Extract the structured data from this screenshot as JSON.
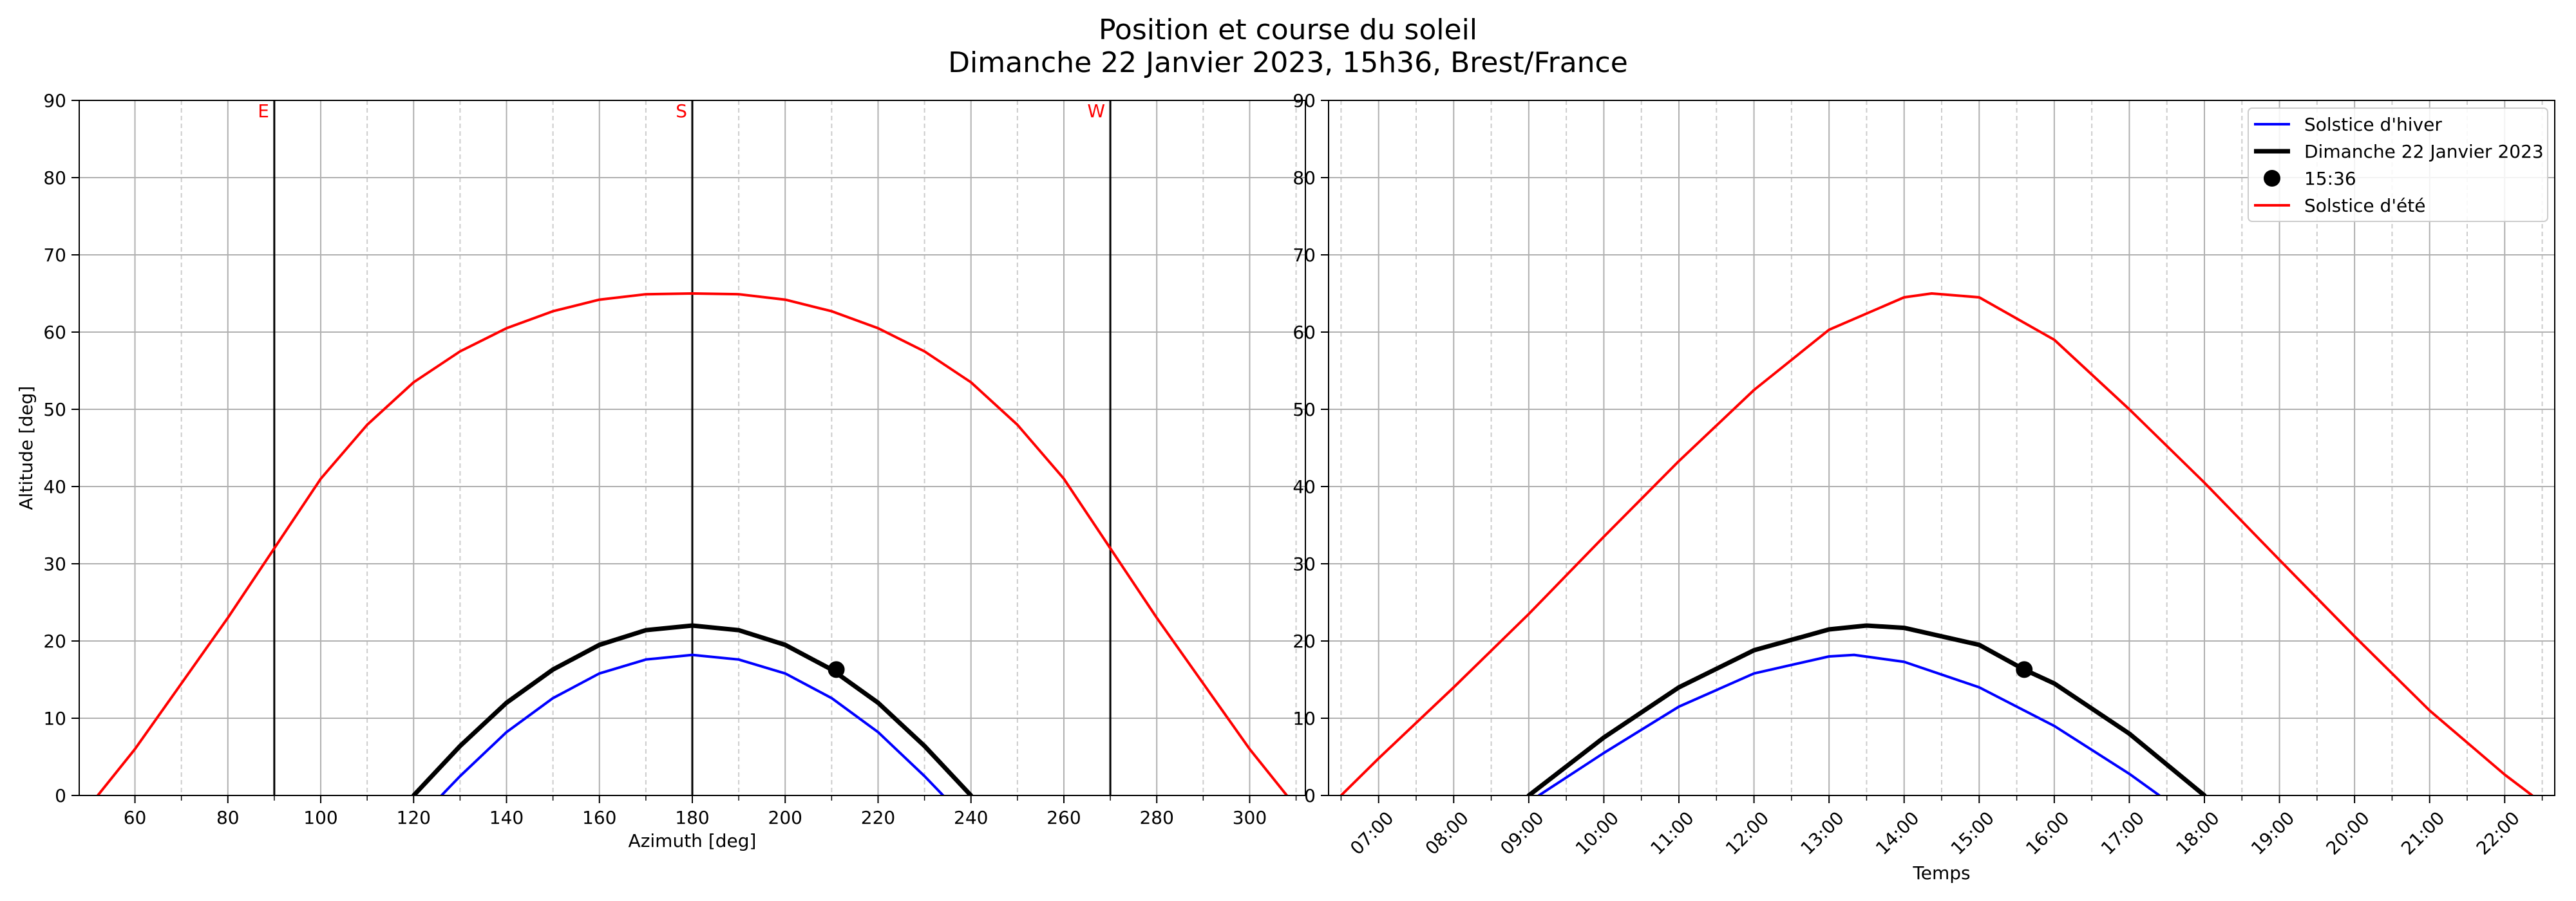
{
  "figure": {
    "title_line1": "Position et course du soleil",
    "title_line2": "Dimanche 22 Janvier 2023, 15h36, Brest/France"
  },
  "colors": {
    "winter": "#0000ff",
    "today": "#000000",
    "summer": "#ff0000",
    "direction_label": "#ff0000",
    "grid_major": "#b0b0b0",
    "grid_minor": "#cccccc"
  },
  "chart_data": [
    {
      "type": "line",
      "xlabel": "Azimuth [deg]",
      "ylabel": "Altitude [deg]",
      "xlim": [
        48,
        312
      ],
      "ylim": [
        0,
        90
      ],
      "x_ticks": [
        60,
        80,
        100,
        120,
        140,
        160,
        180,
        200,
        220,
        240,
        260,
        280,
        300
      ],
      "x_minor_ticks": [
        70,
        90,
        110,
        130,
        150,
        170,
        190,
        210,
        230,
        250,
        270,
        290,
        310
      ],
      "y_ticks": [
        0,
        10,
        20,
        30,
        40,
        50,
        60,
        70,
        80,
        90
      ],
      "grid": true,
      "direction_lines": [
        {
          "label": "E",
          "x": 90
        },
        {
          "label": "S",
          "x": 180
        },
        {
          "label": "W",
          "x": 270
        }
      ],
      "series": [
        {
          "name": "Solstice d'hiver",
          "color": "#0000ff",
          "x": [
            126,
            130,
            140,
            150,
            160,
            170,
            180,
            190,
            200,
            210,
            220,
            230,
            234
          ],
          "y": [
            0,
            2.5,
            8.2,
            12.6,
            15.8,
            17.6,
            18.2,
            17.6,
            15.8,
            12.6,
            8.2,
            2.5,
            0
          ]
        },
        {
          "name": "Dimanche 22 Janvier 2023",
          "color": "#000000",
          "x": [
            120,
            130,
            140,
            150,
            160,
            170,
            180,
            190,
            200,
            210,
            220,
            230,
            240
          ],
          "y": [
            0,
            6.4,
            12,
            16.3,
            19.5,
            21.4,
            22,
            21.4,
            19.5,
            16.3,
            12,
            6.4,
            0
          ]
        },
        {
          "name": "15:36",
          "color": "#000000",
          "marker": "point",
          "x": [
            211
          ],
          "y": [
            16.3
          ]
        },
        {
          "name": "Solstice d'été",
          "color": "#ff0000",
          "x": [
            52,
            60,
            70,
            80,
            90,
            100,
            110,
            120,
            130,
            140,
            150,
            160,
            170,
            180,
            190,
            200,
            210,
            220,
            230,
            240,
            250,
            260,
            270,
            280,
            290,
            300,
            308
          ],
          "y": [
            0,
            6,
            14.5,
            23,
            32,
            41,
            48,
            53.5,
            57.5,
            60.5,
            62.7,
            64.2,
            64.9,
            65,
            64.9,
            64.2,
            62.7,
            60.5,
            57.5,
            53.5,
            48,
            41,
            32,
            23,
            14.5,
            6,
            0
          ]
        }
      ]
    },
    {
      "type": "line",
      "xlabel": "Temps",
      "ylabel": "",
      "xlim": [
        "06:20",
        "22:40"
      ],
      "ylim": [
        0,
        90
      ],
      "x_ticks": [
        "07:00",
        "08:00",
        "09:00",
        "10:00",
        "11:00",
        "12:00",
        "13:00",
        "14:00",
        "15:00",
        "16:00",
        "17:00",
        "18:00",
        "19:00",
        "20:00",
        "21:00",
        "22:00"
      ],
      "x_minor_ticks": [
        "06:30",
        "07:30",
        "08:30",
        "09:30",
        "10:30",
        "11:30",
        "12:30",
        "13:30",
        "14:30",
        "15:30",
        "16:30",
        "17:30",
        "18:30",
        "19:30",
        "20:30",
        "21:30",
        "22:30"
      ],
      "y_ticks": [
        0,
        10,
        20,
        30,
        40,
        50,
        60,
        70,
        80,
        90
      ],
      "grid": true,
      "legend_position": "top-right",
      "series": [
        {
          "name": "Solstice d'hiver",
          "color": "#0000ff",
          "x": [
            "09:08",
            "10:00",
            "11:00",
            "12:00",
            "13:00",
            "13:20",
            "14:00",
            "15:00",
            "16:00",
            "17:00",
            "17:24"
          ],
          "y": [
            0,
            5.5,
            11.5,
            15.8,
            18,
            18.2,
            17.3,
            14,
            9,
            2.8,
            0
          ]
        },
        {
          "name": "Dimanche 22 Janvier 2023",
          "color": "#000000",
          "x": [
            "09:00",
            "10:00",
            "11:00",
            "12:00",
            "13:00",
            "13:30",
            "14:00",
            "15:00",
            "15:36",
            "16:00",
            "17:00",
            "18:00"
          ],
          "y": [
            0,
            7.5,
            14,
            18.8,
            21.5,
            22,
            21.7,
            19.5,
            16.3,
            14.5,
            8,
            0
          ]
        },
        {
          "name": "15:36",
          "color": "#000000",
          "marker": "point",
          "x": [
            "15:36"
          ],
          "y": [
            16.3
          ]
        },
        {
          "name": "Solstice d'été",
          "color": "#ff0000",
          "x": [
            "06:30",
            "07:00",
            "08:00",
            "09:00",
            "10:00",
            "11:00",
            "12:00",
            "13:00",
            "14:00",
            "14:22",
            "15:00",
            "16:00",
            "17:00",
            "18:00",
            "19:00",
            "20:00",
            "21:00",
            "22:00",
            "22:22"
          ],
          "y": [
            0,
            4.8,
            14,
            23.5,
            33.5,
            43.3,
            52.5,
            60.3,
            64.5,
            65,
            64.5,
            59,
            50,
            40.5,
            30.5,
            20.6,
            11,
            2.7,
            0
          ]
        }
      ]
    }
  ]
}
